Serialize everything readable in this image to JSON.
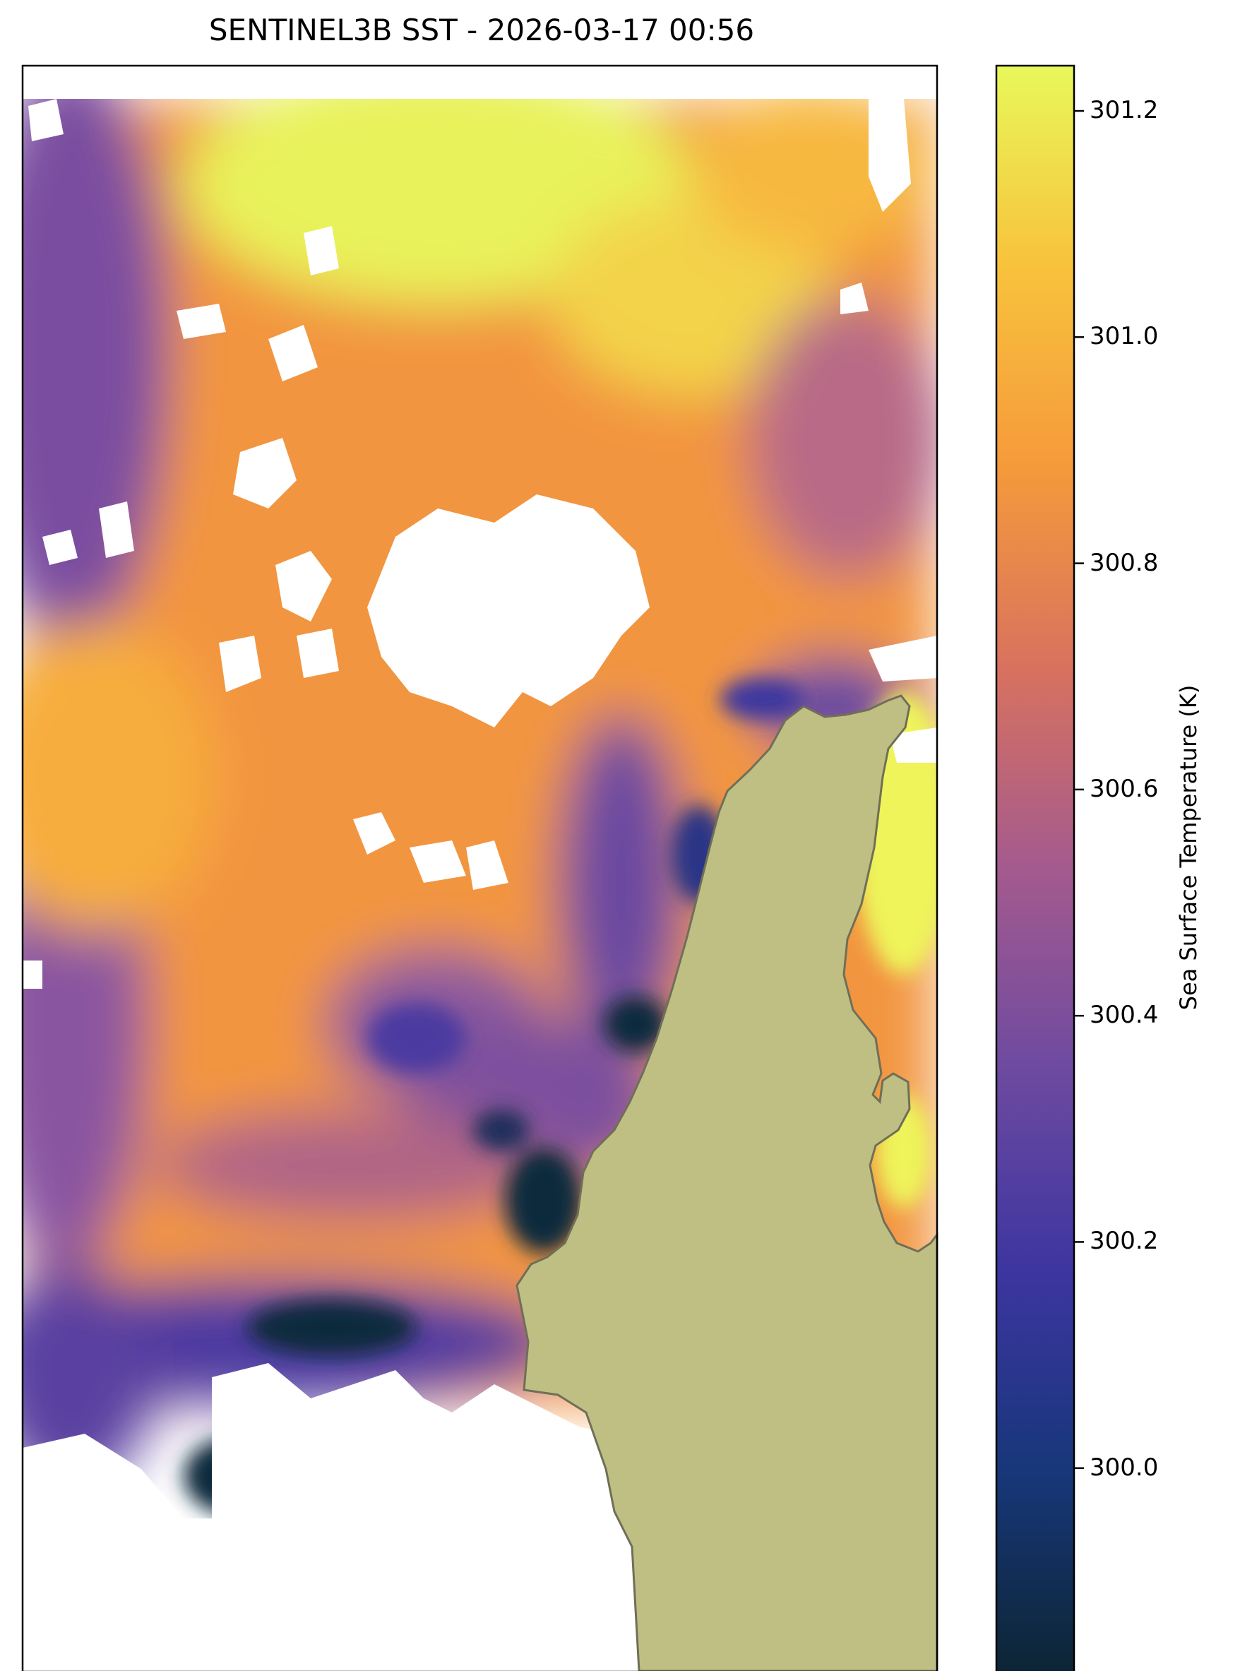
{
  "title": "SENTINEL3B SST - 2026-03-17 00:56",
  "colorbar": {
    "label": "Sea Surface Temperature (K)",
    "min": 299.82,
    "max": 301.24,
    "ticks": [
      "300.0",
      "300.2",
      "300.4",
      "300.6",
      "300.8",
      "301.0",
      "301.2"
    ],
    "tick_values": [
      300.0,
      300.2,
      300.4,
      300.6,
      300.8,
      301.0,
      301.2
    ],
    "colormap": "thermal",
    "stops": [
      "#0d2535",
      "#17377a",
      "#3d35a0",
      "#6d4aa0",
      "#a45a8e",
      "#d8725f",
      "#f59a3b",
      "#f8c23c",
      "#e8f85a"
    ]
  },
  "colors": {
    "land": "#bfbf84",
    "land_outline": "#6f6f58",
    "no_data": "#ffffff",
    "frame": "#000000"
  },
  "chart_data": {
    "type": "heatmap",
    "title": "SENTINEL3B SST - 2026-03-17 00:56",
    "variable": "Sea Surface Temperature (K)",
    "value_range": [
      299.82,
      301.24
    ],
    "regions": [
      {
        "area": "north-central band",
        "approx_value": 301.2
      },
      {
        "area": "central and western open water",
        "approx_value": 300.9
      },
      {
        "area": "far west edge",
        "approx_value": 300.35
      },
      {
        "area": "nearshore along coast",
        "approx_value": 300.1
      },
      {
        "area": "south cold eddy",
        "approx_value": 299.9
      },
      {
        "area": "east of landmass",
        "approx_value": 301.15
      }
    ]
  }
}
